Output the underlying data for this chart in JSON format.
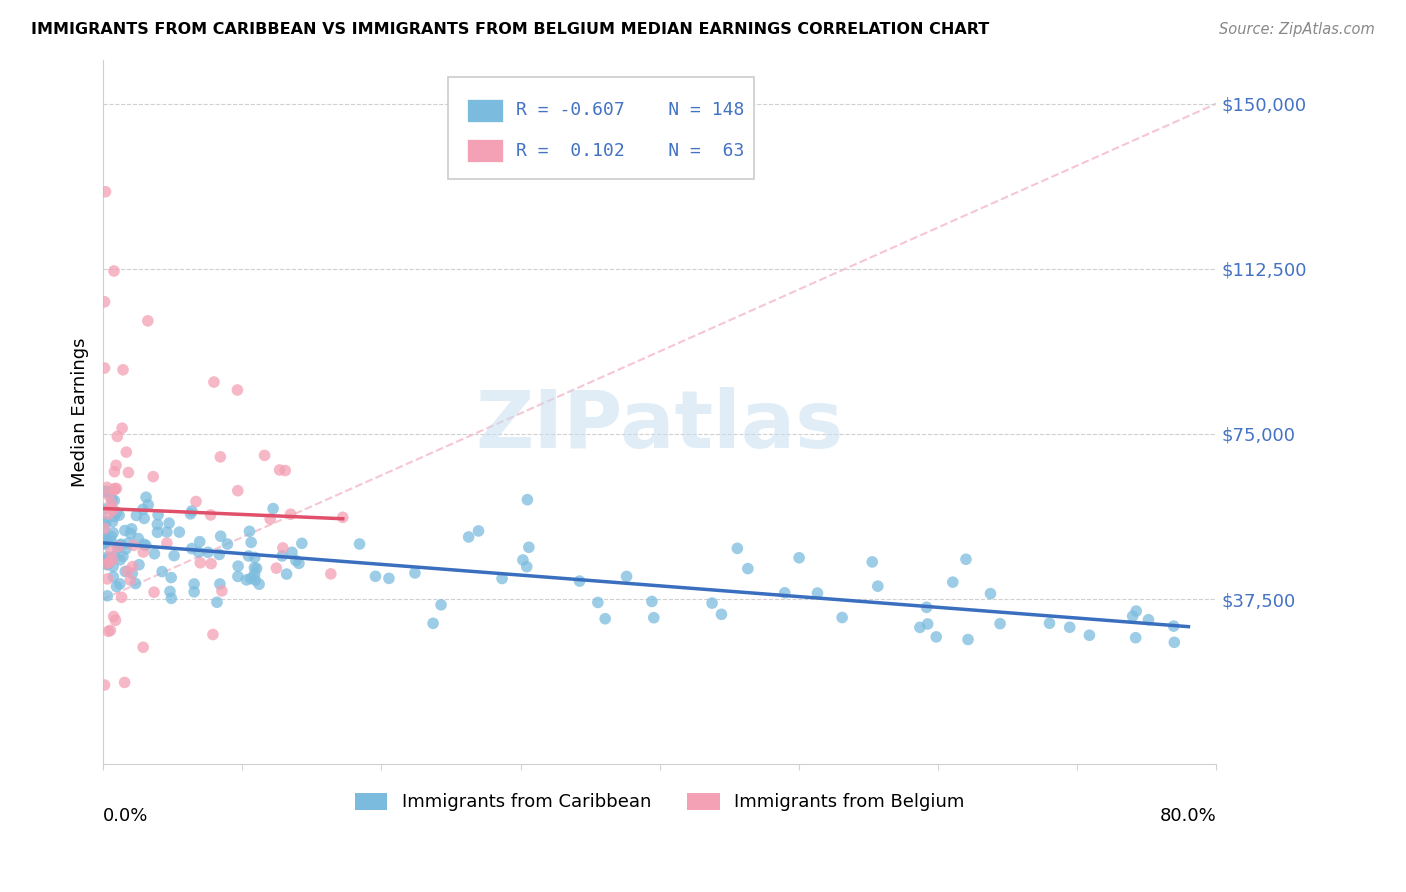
{
  "title": "IMMIGRANTS FROM CARIBBEAN VS IMMIGRANTS FROM BELGIUM MEDIAN EARNINGS CORRELATION CHART",
  "source": "Source: ZipAtlas.com",
  "ylabel": "Median Earnings",
  "watermark": "ZIPatlas",
  "blue_R": -0.607,
  "blue_N": 148,
  "pink_R": 0.102,
  "pink_N": 63,
  "blue_color": "#7bbcde",
  "pink_color": "#f4a0b5",
  "blue_line_color": "#3a6fbf",
  "pink_line_color": "#e0506a",
  "dashed_color": "#f4b8c8",
  "ytick_color": "#4472c4",
  "xmin": 0.0,
  "xmax": 0.8,
  "ymin": 0,
  "ymax": 160000,
  "yticks": [
    0,
    37500,
    75000,
    112500,
    150000
  ],
  "ytick_labels": [
    "",
    "$37,500",
    "$75,000",
    "$112,500",
    "$150,000"
  ],
  "legend_R_blue": "R = -0.607",
  "legend_N_blue": "N = 148",
  "legend_R_pink": "R =  0.102",
  "legend_N_pink": "N =  63",
  "blue_seed": 42,
  "pink_seed": 7
}
